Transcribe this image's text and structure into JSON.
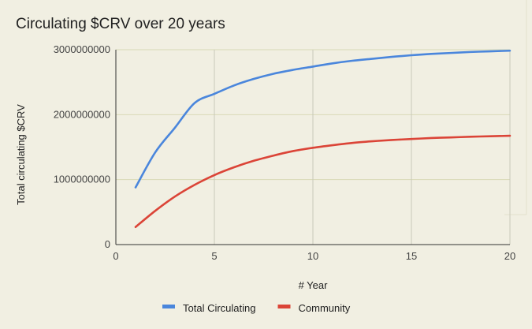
{
  "chart_data": {
    "type": "line",
    "title": "Circulating $CRV over 20 years",
    "xlabel": "# Year",
    "ylabel": "Total circulating $CRV",
    "xlim": [
      0,
      20
    ],
    "ylim": [
      0,
      3000000000
    ],
    "x_ticks": [
      0,
      5,
      10,
      15,
      20
    ],
    "x_tick_labels": [
      "0",
      "5",
      "10",
      "15",
      "20"
    ],
    "y_ticks": [
      0,
      1000000000,
      2000000000,
      3000000000
    ],
    "y_tick_labels": [
      "0",
      "1000000000",
      "2000000000",
      "3000000000"
    ],
    "grid": true,
    "legend_position": "bottom",
    "x": [
      1,
      2,
      3,
      4,
      5,
      6,
      7,
      8,
      9,
      10,
      11,
      12,
      13,
      14,
      15,
      16,
      17,
      18,
      19,
      20
    ],
    "series": [
      {
        "name": "Total Circulating",
        "color": "#4a86dc",
        "values": [
          880000000,
          1420000000,
          1800000000,
          2180000000,
          2320000000,
          2450000000,
          2550000000,
          2630000000,
          2690000000,
          2740000000,
          2790000000,
          2830000000,
          2860000000,
          2890000000,
          2915000000,
          2935000000,
          2950000000,
          2965000000,
          2975000000,
          2985000000
        ]
      },
      {
        "name": "Community",
        "color": "#db4437",
        "values": [
          270000000,
          520000000,
          740000000,
          920000000,
          1070000000,
          1190000000,
          1290000000,
          1370000000,
          1440000000,
          1490000000,
          1530000000,
          1565000000,
          1590000000,
          1610000000,
          1625000000,
          1640000000,
          1650000000,
          1660000000,
          1668000000,
          1675000000
        ]
      }
    ]
  }
}
